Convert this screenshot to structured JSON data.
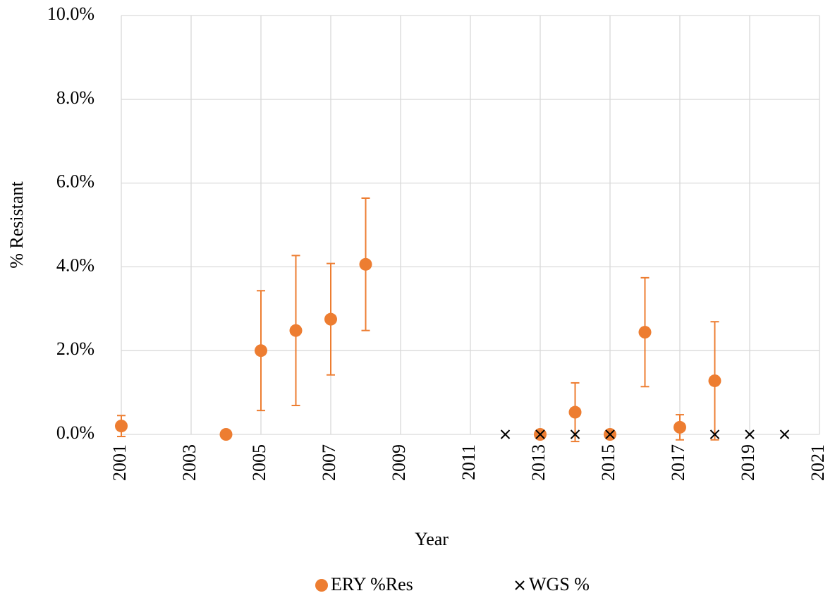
{
  "chart_data": {
    "type": "scatter",
    "x_label": "Year",
    "y_label": "% Resistant",
    "xlim": [
      2001,
      2021
    ],
    "xticks": [
      2001,
      2003,
      2005,
      2007,
      2009,
      2011,
      2013,
      2015,
      2017,
      2019,
      2021
    ],
    "ylim": [
      0,
      10
    ],
    "yticks": [
      {
        "value": 0,
        "label": "0.0%"
      },
      {
        "value": 2,
        "label": "2.0%"
      },
      {
        "value": 4,
        "label": "4.0%"
      },
      {
        "value": 6,
        "label": "6.0%"
      },
      {
        "value": 8,
        "label": "8.0%"
      },
      {
        "value": 10,
        "label": "10.0%"
      }
    ],
    "grid": true,
    "legend": "bottom",
    "series": [
      {
        "name": "ERY %Res",
        "color": "#ed7d31",
        "marker": "circle",
        "x": [
          2001,
          2004,
          2005,
          2006,
          2007,
          2008,
          2013,
          2014,
          2015,
          2016,
          2017,
          2018
        ],
        "values": [
          0.2,
          0,
          2.0,
          2.48,
          2.75,
          4.06,
          0,
          0.53,
          0,
          2.44,
          0.17,
          1.28
        ],
        "errors": [
          0.25,
          null,
          1.43,
          1.79,
          1.33,
          1.58,
          null,
          0.7,
          null,
          1.3,
          0.3,
          1.41
        ]
      },
      {
        "name": "WGS %",
        "color": "#000000",
        "marker": "x",
        "x": [
          2012,
          2013,
          2014,
          2015,
          2018,
          2019,
          2020
        ],
        "values": [
          0,
          0,
          0,
          0,
          0,
          0,
          0
        ]
      }
    ]
  }
}
